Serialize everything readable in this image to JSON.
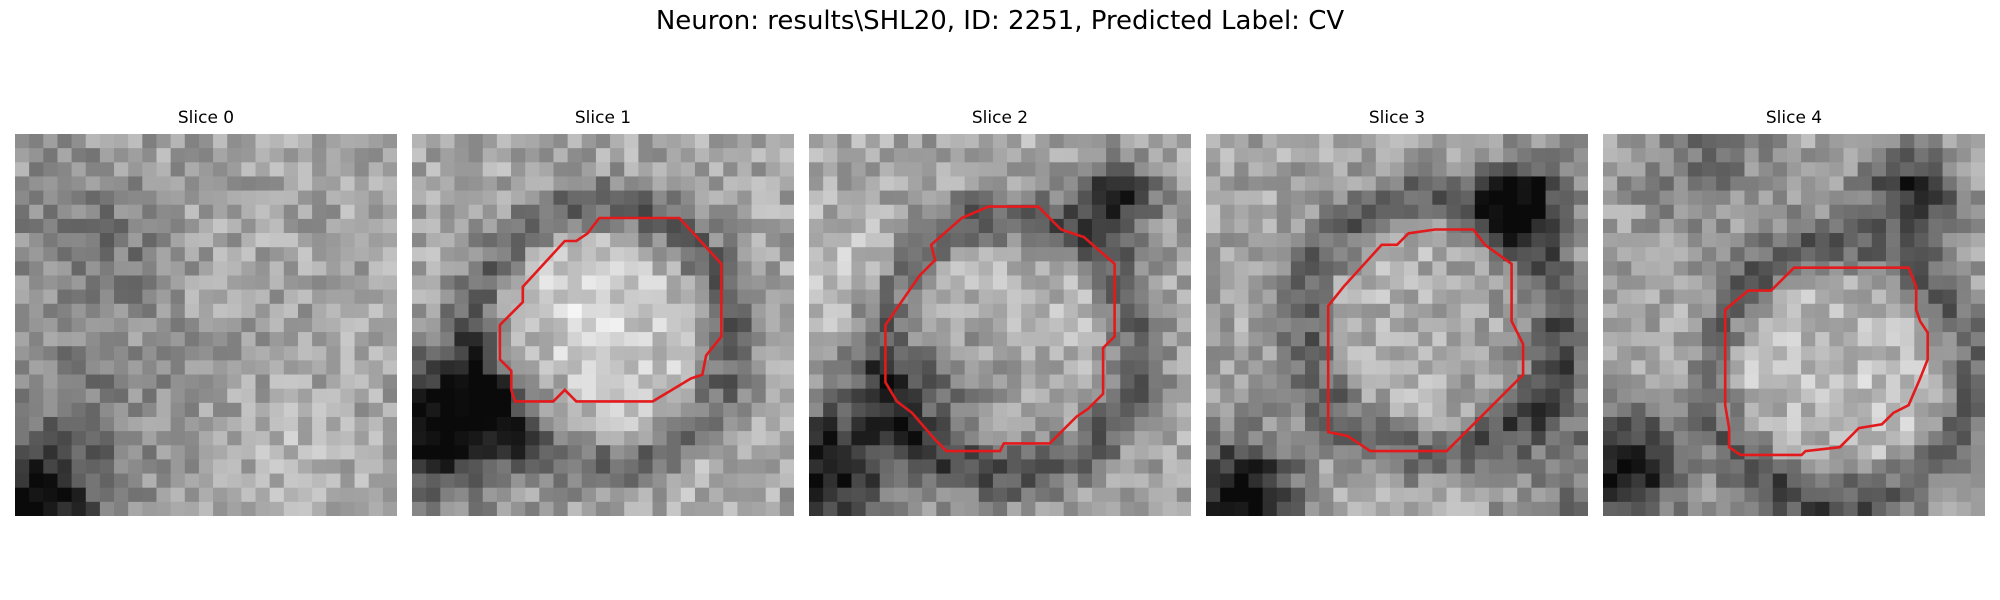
{
  "figure": {
    "suptitle": "Neuron: results\\SHL20, ID: 2251, Predicted Label: CV",
    "contour_color": "#e31a1c",
    "panels": [
      {
        "title": "Slice 0",
        "seed": 11,
        "has_contour": false,
        "dark_corner": "bottom-left",
        "contour": []
      },
      {
        "title": "Slice 1",
        "seed": 23,
        "has_contour": true,
        "dark_corner": "left",
        "contour": [
          [
            0.49,
            0.22
          ],
          [
            0.7,
            0.22
          ],
          [
            0.81,
            0.34
          ],
          [
            0.81,
            0.53
          ],
          [
            0.77,
            0.58
          ],
          [
            0.76,
            0.63
          ],
          [
            0.73,
            0.64
          ],
          [
            0.63,
            0.7
          ],
          [
            0.43,
            0.7
          ],
          [
            0.4,
            0.67
          ],
          [
            0.37,
            0.7
          ],
          [
            0.27,
            0.7
          ],
          [
            0.26,
            0.67
          ],
          [
            0.26,
            0.62
          ],
          [
            0.23,
            0.59
          ],
          [
            0.23,
            0.5
          ],
          [
            0.29,
            0.44
          ],
          [
            0.29,
            0.4
          ],
          [
            0.4,
            0.28
          ],
          [
            0.43,
            0.28
          ],
          [
            0.46,
            0.26
          ]
        ]
      },
      {
        "title": "Slice 2",
        "seed": 37,
        "has_contour": true,
        "dark_corner": "right",
        "contour": [
          [
            0.4,
            0.22
          ],
          [
            0.47,
            0.19
          ],
          [
            0.6,
            0.19
          ],
          [
            0.66,
            0.25
          ],
          [
            0.72,
            0.27
          ],
          [
            0.8,
            0.34
          ],
          [
            0.8,
            0.53
          ],
          [
            0.77,
            0.56
          ],
          [
            0.77,
            0.68
          ],
          [
            0.73,
            0.72
          ],
          [
            0.7,
            0.74
          ],
          [
            0.63,
            0.81
          ],
          [
            0.51,
            0.81
          ],
          [
            0.5,
            0.83
          ],
          [
            0.36,
            0.83
          ],
          [
            0.33,
            0.8
          ],
          [
            0.27,
            0.73
          ],
          [
            0.23,
            0.7
          ],
          [
            0.2,
            0.65
          ],
          [
            0.2,
            0.5
          ],
          [
            0.29,
            0.37
          ],
          [
            0.33,
            0.33
          ],
          [
            0.32,
            0.29
          ]
        ]
      },
      {
        "title": "Slice 3",
        "seed": 41,
        "has_contour": true,
        "dark_corner": "top-right",
        "contour": [
          [
            0.53,
            0.26
          ],
          [
            0.6,
            0.25
          ],
          [
            0.7,
            0.25
          ],
          [
            0.73,
            0.29
          ],
          [
            0.8,
            0.34
          ],
          [
            0.8,
            0.49
          ],
          [
            0.83,
            0.55
          ],
          [
            0.83,
            0.63
          ],
          [
            0.63,
            0.83
          ],
          [
            0.43,
            0.83
          ],
          [
            0.37,
            0.79
          ],
          [
            0.32,
            0.78
          ],
          [
            0.32,
            0.45
          ],
          [
            0.36,
            0.4
          ],
          [
            0.46,
            0.29
          ],
          [
            0.5,
            0.29
          ]
        ]
      },
      {
        "title": "Slice 4",
        "seed": 59,
        "has_contour": true,
        "dark_corner": "right",
        "contour": [
          [
            0.5,
            0.35
          ],
          [
            0.8,
            0.35
          ],
          [
            0.82,
            0.4
          ],
          [
            0.82,
            0.46
          ],
          [
            0.83,
            0.49
          ],
          [
            0.85,
            0.52
          ],
          [
            0.85,
            0.59
          ],
          [
            0.83,
            0.64
          ],
          [
            0.8,
            0.71
          ],
          [
            0.76,
            0.73
          ],
          [
            0.73,
            0.76
          ],
          [
            0.67,
            0.77
          ],
          [
            0.62,
            0.82
          ],
          [
            0.53,
            0.83
          ],
          [
            0.52,
            0.84
          ],
          [
            0.36,
            0.84
          ],
          [
            0.33,
            0.82
          ],
          [
            0.33,
            0.77
          ],
          [
            0.32,
            0.71
          ],
          [
            0.32,
            0.46
          ],
          [
            0.38,
            0.41
          ],
          [
            0.44,
            0.41
          ],
          [
            0.47,
            0.38
          ]
        ]
      }
    ]
  }
}
